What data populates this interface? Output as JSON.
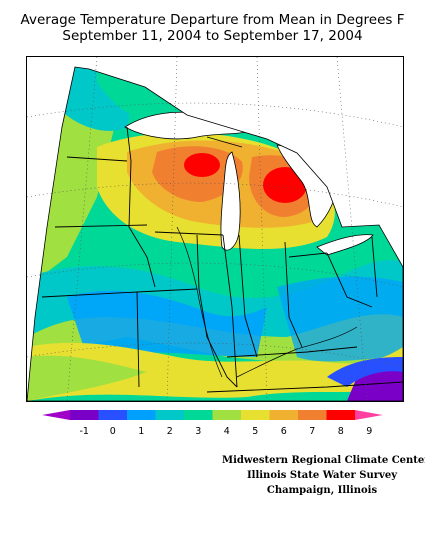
{
  "title_line1": "Average Temperature Departure from Mean in Degrees F",
  "title_line2": "September 11, 2004 to September 17, 2004",
  "legend": {
    "ticks": [
      "-1",
      "0",
      "1",
      "2",
      "3",
      "4",
      "5",
      "6",
      "7",
      "8",
      "9"
    ],
    "colors": [
      "#7a00c8",
      "#2850ff",
      "#00a0ff",
      "#00c8c8",
      "#00d898",
      "#a0e040",
      "#e8e030",
      "#f0b030",
      "#f08030",
      "#ff0000"
    ],
    "low_arrow_color": "#a000c8",
    "high_arrow_color": "#ff40a0"
  },
  "credits": {
    "line1": "Midwestern Regional Climate Center",
    "line2": "Illinois State Water Survey",
    "line3": "Champaign, Illinois"
  }
}
